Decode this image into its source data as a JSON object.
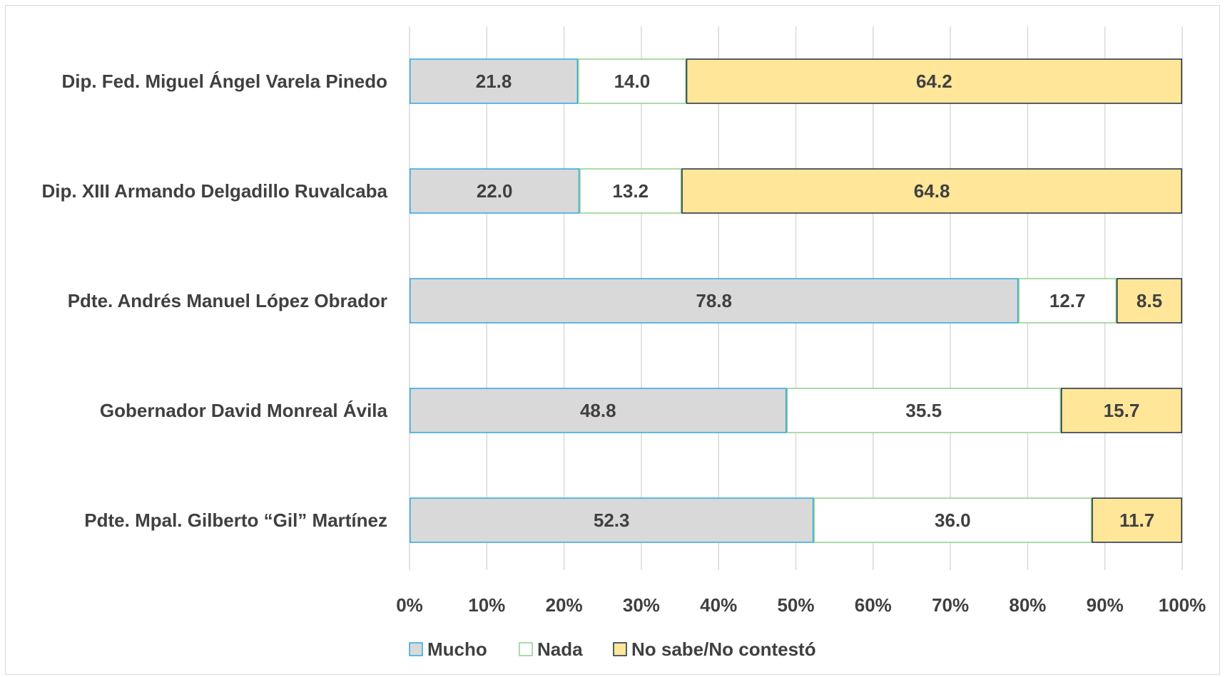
{
  "chart_data": {
    "type": "bar",
    "orientation": "horizontal",
    "stacked": "percent",
    "title": "",
    "xlabel": "",
    "ylabel": "",
    "xlim": [
      0,
      100
    ],
    "grid": true,
    "legend_position": "bottom",
    "categories": [
      "Dip. Fed. Miguel Ángel Varela Pinedo",
      "Dip. XIII Armando Delgadillo Ruvalcaba",
      "Pdte. Andrés Manuel López Obrador",
      "Gobernador David Monreal Ávila",
      "Pdte. Mpal. Gilberto “Gil” Martínez"
    ],
    "series": [
      {
        "name": "Mucho",
        "values": [
          21.8,
          22.0,
          78.8,
          48.8,
          52.3
        ],
        "fill": "#d9d9d9",
        "stroke": "#2ea8df"
      },
      {
        "name": "Nada",
        "values": [
          14.0,
          13.2,
          12.7,
          35.5,
          36.0
        ],
        "fill": "#ffffff",
        "stroke": "#8fd18a"
      },
      {
        "name": "No sabe/No contestó",
        "values": [
          64.2,
          64.8,
          8.5,
          15.7,
          11.7
        ],
        "fill": "#ffe699",
        "stroke": "#1f2a44"
      }
    ],
    "data_labels": [
      [
        "21.8",
        "14.0",
        "64.2"
      ],
      [
        "22.0",
        "13.2",
        "64.8"
      ],
      [
        "78.8",
        "12.7",
        "8.5"
      ],
      [
        "48.8",
        "35.5",
        "15.7"
      ],
      [
        "52.3",
        "36.0",
        "11.7"
      ]
    ],
    "x_ticks": [
      0,
      10,
      20,
      30,
      40,
      50,
      60,
      70,
      80,
      90,
      100
    ],
    "x_tick_labels": [
      "0%",
      "10%",
      "20%",
      "30%",
      "40%",
      "50%",
      "60%",
      "70%",
      "80%",
      "90%",
      "100%"
    ]
  },
  "colors": {
    "text": "#404040",
    "grid": "#d9d9d9"
  }
}
